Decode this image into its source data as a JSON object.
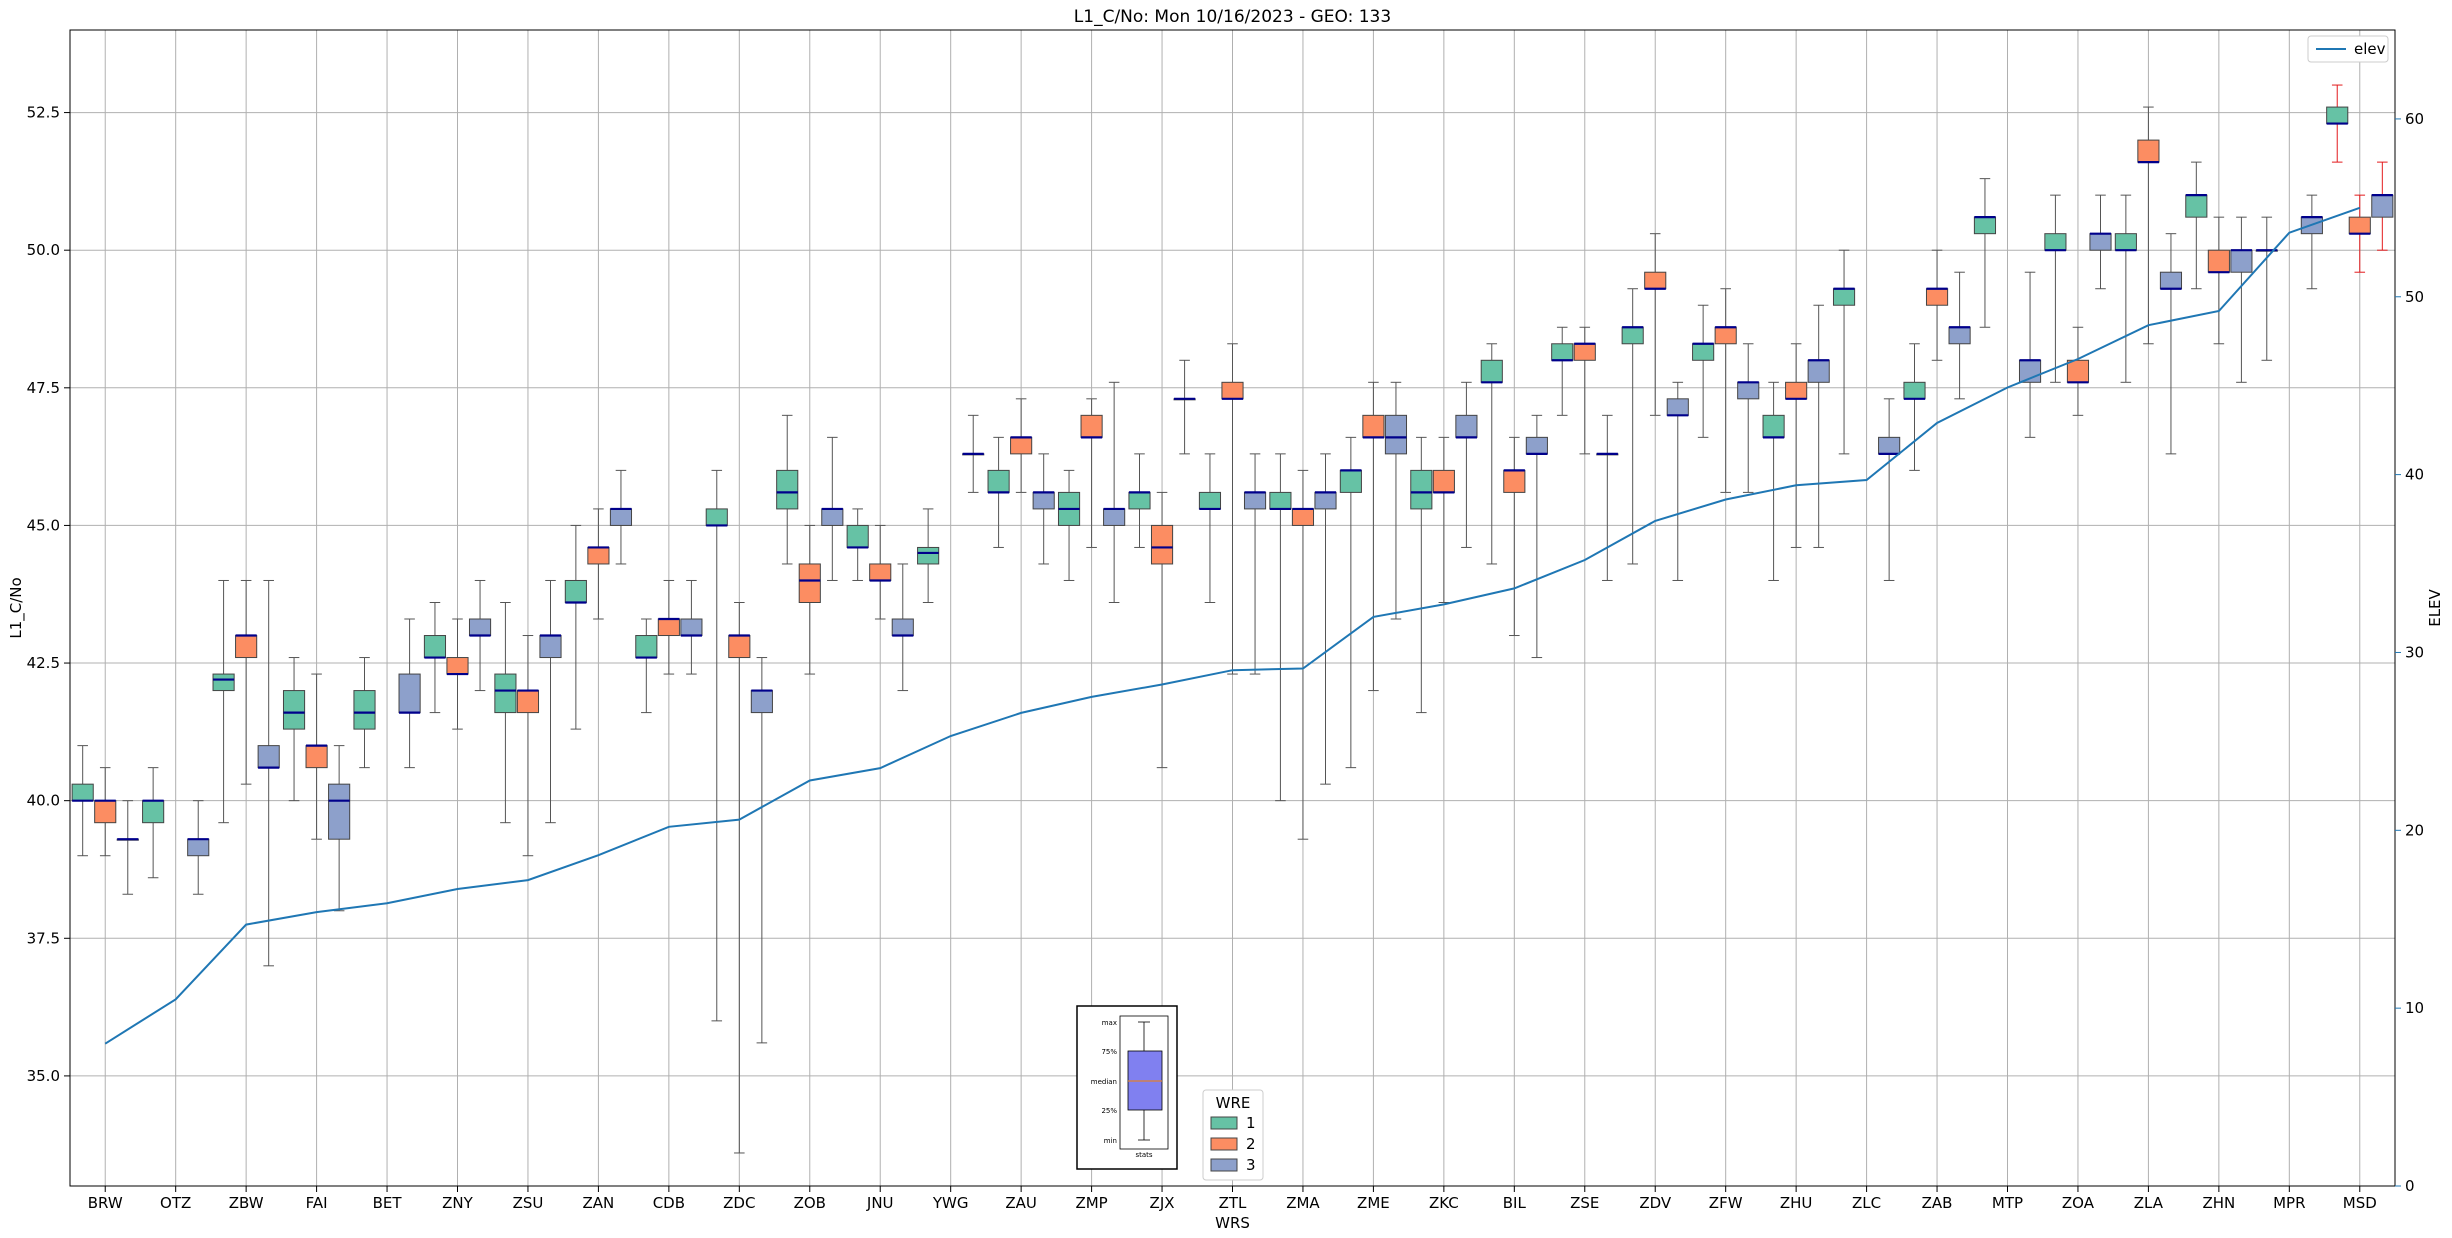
{
  "chart_data": {
    "type": "box",
    "title": "L1_C/No: Mon 10/16/2023 - GEO: 133",
    "xlabel": "WRS",
    "ylabel": "L1_C/No",
    "y2label": "ELEV",
    "ylim": [
      33,
      54
    ],
    "y2lim": [
      0,
      65
    ],
    "yticks": [
      "35.0",
      "37.5",
      "40.0",
      "42.5",
      "45.0",
      "47.5",
      "50.0",
      "52.5"
    ],
    "y2ticks": [
      "0",
      "10",
      "20",
      "30",
      "40",
      "50",
      "60"
    ],
    "grid": true,
    "categories": [
      "BRW",
      "OTZ",
      "ZBW",
      "FAI",
      "BET",
      "ZNY",
      "ZSU",
      "ZAN",
      "CDB",
      "ZDC",
      "ZOB",
      "JNU",
      "YWG",
      "ZAU",
      "ZMP",
      "ZJX",
      "ZTL",
      "ZMA",
      "ZME",
      "ZKC",
      "BIL",
      "ZSE",
      "ZDV",
      "ZFW",
      "ZHU",
      "ZLC",
      "ZAB",
      "MTP",
      "ZOA",
      "ZLA",
      "ZHN",
      "MPR",
      "MSD"
    ],
    "colors": {
      "wre1": "#66c2a5",
      "wre2": "#fc8d62",
      "wre3": "#8da0cb",
      "line": "#1f77b4",
      "median": "#00008b",
      "whisker": "#555555",
      "whisker_alt": "#e31a1c"
    },
    "box_legend": {
      "title": "WRE",
      "entries": [
        "1",
        "2",
        "3"
      ],
      "location": "bottom-center"
    },
    "line_legend": {
      "entries": [
        "elev"
      ],
      "location": "top-right"
    },
    "inset_key": {
      "labels": [
        "max",
        "75%",
        "median",
        "25%",
        "min"
      ],
      "caption": "stats",
      "location": "bottom-center"
    },
    "elev": [
      8,
      10.5,
      14.7,
      15.4,
      15.9,
      16.7,
      17.2,
      18.6,
      20.2,
      20.6,
      22.8,
      23.5,
      25.3,
      26.6,
      27.5,
      28.2,
      29,
      29.1,
      32,
      32.7,
      33.6,
      35.2,
      37.4,
      38.6,
      39.4,
      39.7,
      42.9,
      44.9,
      46.5,
      48.4,
      49.2,
      53.6,
      55
    ],
    "series": [
      {
        "name": "1",
        "boxes": [
          [
            0,
            39,
            40,
            40,
            40.3,
            41
          ],
          [
            1,
            38.6,
            39.6,
            40,
            40,
            40.6
          ],
          [
            2,
            39.6,
            42,
            42.2,
            42.3,
            44
          ],
          [
            3,
            40,
            41.3,
            41.6,
            42,
            42.6
          ],
          [
            4,
            40.6,
            41.3,
            41.6,
            42,
            42.6
          ],
          [
            5,
            41.6,
            42.6,
            42.6,
            43,
            43.6
          ],
          [
            6,
            39.6,
            41.6,
            42,
            42.3,
            43.6
          ],
          [
            7,
            41.3,
            43.6,
            43.6,
            44,
            45
          ],
          [
            8,
            41.6,
            42.6,
            42.6,
            43,
            43.3
          ],
          [
            9,
            36,
            45,
            45,
            45.3,
            46
          ],
          [
            10,
            44.3,
            45.3,
            45.6,
            46,
            47
          ],
          [
            11,
            44,
            44.6,
            44.6,
            45,
            45.3
          ],
          [
            12,
            43.6,
            44.3,
            44.5,
            44.6,
            45.3
          ],
          [
            13,
            44.6,
            45.6,
            45.6,
            46,
            46.6
          ],
          [
            14,
            44,
            45,
            45.3,
            45.6,
            46
          ],
          [
            15,
            44.6,
            45.3,
            45.6,
            45.6,
            46.3
          ],
          [
            16,
            43.6,
            45.3,
            45.3,
            45.6,
            46.3
          ],
          [
            17,
            40,
            45.3,
            45.3,
            45.6,
            46.3
          ],
          [
            18,
            40.6,
            45.6,
            46,
            46,
            46.6
          ],
          [
            19,
            41.6,
            45.3,
            45.6,
            46,
            46.6
          ],
          [
            20,
            44.3,
            47.6,
            47.6,
            48,
            48.3
          ],
          [
            21,
            47,
            48,
            48,
            48.3,
            48.6
          ],
          [
            22,
            44.3,
            48.3,
            48.6,
            48.6,
            49.3
          ],
          [
            23,
            46.6,
            48,
            48.3,
            48.3,
            49
          ],
          [
            24,
            44,
            46.6,
            46.6,
            47,
            47.6
          ],
          [
            25,
            46.3,
            49,
            49.3,
            49.3,
            50
          ],
          [
            26,
            46,
            47.3,
            47.3,
            47.6,
            48.3
          ],
          [
            27,
            48.6,
            50.3,
            50.6,
            50.6,
            51.3
          ],
          [
            28,
            47.6,
            50,
            50,
            50.3,
            51
          ],
          [
            29,
            47.6,
            50,
            50,
            50.3,
            51
          ],
          [
            30,
            49.3,
            50.6,
            51,
            51,
            51.6
          ],
          [
            31,
            48,
            50,
            50,
            50,
            50.6
          ],
          [
            32,
            51.6,
            52.3,
            52.3,
            52.6,
            53
          ]
        ]
      },
      {
        "name": "2",
        "boxes": [
          [
            0,
            39,
            39.6,
            40,
            40,
            40.6
          ],
          [
            2,
            40.3,
            42.6,
            43,
            43,
            44
          ],
          [
            3,
            39.3,
            40.6,
            41,
            41,
            42.3
          ],
          [
            5,
            41.3,
            42.3,
            42.3,
            42.6,
            43.3
          ],
          [
            6,
            39,
            41.6,
            42,
            42,
            43
          ],
          [
            7,
            43.3,
            44.3,
            44.6,
            44.6,
            45.3
          ],
          [
            8,
            42.3,
            43,
            43.3,
            43.3,
            44
          ],
          [
            9,
            33.6,
            42.6,
            43,
            43,
            43.6
          ],
          [
            10,
            42.3,
            43.6,
            44,
            44.3,
            45
          ],
          [
            11,
            43.3,
            44,
            44,
            44.3,
            45
          ],
          [
            13,
            45.6,
            46.3,
            46.6,
            46.6,
            47.3
          ],
          [
            14,
            44.6,
            46.6,
            46.6,
            47,
            47.3
          ],
          [
            15,
            40.6,
            44.3,
            44.6,
            45,
            45.6
          ],
          [
            16,
            42.3,
            47.3,
            47.3,
            47.6,
            48.3
          ],
          [
            17,
            39.3,
            45,
            45.3,
            45.3,
            46
          ],
          [
            18,
            42,
            46.6,
            46.6,
            47,
            47.6
          ],
          [
            19,
            43.6,
            45.6,
            45.6,
            46,
            46.6
          ],
          [
            20,
            43,
            45.6,
            46,
            46,
            46.6
          ],
          [
            21,
            46.3,
            48,
            48.3,
            48.3,
            48.6
          ],
          [
            22,
            47,
            49.3,
            49.3,
            49.6,
            50.3
          ],
          [
            23,
            45.6,
            48.3,
            48.6,
            48.6,
            49.3
          ],
          [
            24,
            44.6,
            47.3,
            47.3,
            47.6,
            48.3
          ],
          [
            26,
            48,
            49,
            49.3,
            49.3,
            50
          ],
          [
            28,
            47,
            47.6,
            47.6,
            48,
            48.6
          ],
          [
            29,
            48.3,
            51.6,
            51.6,
            52,
            52.6
          ],
          [
            30,
            48.3,
            49.6,
            49.6,
            50,
            50.6
          ],
          [
            32,
            49.6,
            50.3,
            50.3,
            50.6,
            51
          ]
        ]
      },
      {
        "name": "3",
        "boxes": [
          [
            0,
            38.3,
            39.3,
            39.3,
            39.3,
            40
          ],
          [
            1,
            38.3,
            39,
            39.3,
            39.3,
            40
          ],
          [
            2,
            37,
            40.6,
            40.6,
            41,
            44
          ],
          [
            3,
            38,
            39.3,
            40,
            40.3,
            41
          ],
          [
            4,
            40.6,
            41.6,
            41.6,
            42.3,
            43.3
          ],
          [
            5,
            42,
            43,
            43,
            43.3,
            44
          ],
          [
            6,
            39.6,
            42.6,
            43,
            43,
            44
          ],
          [
            7,
            44.3,
            45,
            45.3,
            45.3,
            46
          ],
          [
            8,
            42.3,
            43,
            43,
            43.3,
            44
          ],
          [
            9,
            35.6,
            41.6,
            42,
            42,
            42.6
          ],
          [
            10,
            44,
            45,
            45.3,
            45.3,
            46.6
          ],
          [
            11,
            42,
            43,
            43,
            43.3,
            44.3
          ],
          [
            12,
            45.6,
            46.3,
            46.3,
            46.3,
            47
          ],
          [
            13,
            44.3,
            45.3,
            45.6,
            45.6,
            46.3
          ],
          [
            14,
            43.6,
            45,
            45.3,
            45.3,
            47.6
          ],
          [
            15,
            46.3,
            47.3,
            47.3,
            47.3,
            48
          ],
          [
            16,
            42.3,
            45.3,
            45.6,
            45.6,
            46.3
          ],
          [
            17,
            40.3,
            45.3,
            45.6,
            45.6,
            46.3
          ],
          [
            18,
            43.3,
            46.3,
            46.6,
            47,
            47.6
          ],
          [
            19,
            44.6,
            46.6,
            46.6,
            47,
            47.6
          ],
          [
            20,
            42.6,
            46.3,
            46.3,
            46.6,
            47
          ],
          [
            21,
            44,
            46.3,
            46.3,
            46.3,
            47
          ],
          [
            22,
            44,
            47,
            47,
            47.3,
            47.6
          ],
          [
            23,
            45.6,
            47.3,
            47.6,
            47.6,
            48.3
          ],
          [
            24,
            44.6,
            47.6,
            48,
            48,
            49
          ],
          [
            25,
            44,
            46.3,
            46.3,
            46.6,
            47.3
          ],
          [
            26,
            47.3,
            48.3,
            48.6,
            48.6,
            49.6
          ],
          [
            27,
            46.6,
            47.6,
            48,
            48,
            49.6
          ],
          [
            28,
            49.3,
            50,
            50.3,
            50.3,
            51
          ],
          [
            29,
            46.3,
            49.3,
            49.3,
            49.6,
            50.3
          ],
          [
            30,
            47.6,
            49.6,
            50,
            50,
            50.6
          ],
          [
            31,
            49.3,
            50.3,
            50.6,
            50.6,
            51
          ],
          [
            32,
            50,
            50.6,
            51,
            51,
            51.6
          ]
        ]
      }
    ]
  }
}
